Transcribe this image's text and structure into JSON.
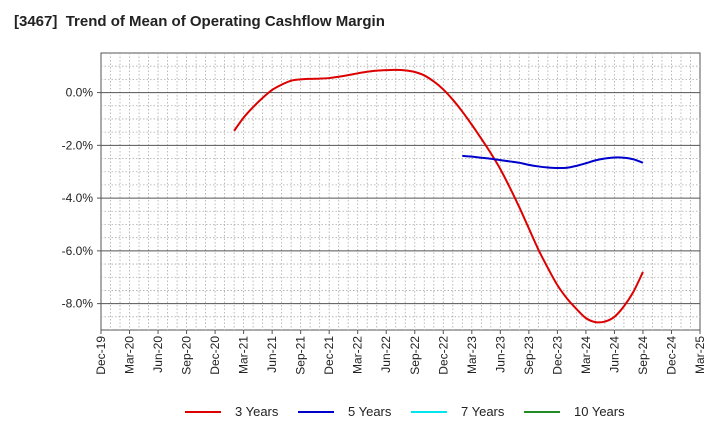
{
  "chart_data": {
    "type": "line",
    "title": "[3467]  Trend of Mean of Operating Cashflow Margin",
    "xlabel": "",
    "ylabel": "",
    "x_tick_labels": [
      "Dec-19",
      "Mar-20",
      "Jun-20",
      "Sep-20",
      "Dec-20",
      "Mar-21",
      "Jun-21",
      "Sep-21",
      "Dec-21",
      "Mar-22",
      "Jun-22",
      "Sep-22",
      "Dec-22",
      "Mar-23",
      "Jun-23",
      "Sep-23",
      "Dec-23",
      "Mar-24",
      "Jun-24",
      "Sep-24",
      "Dec-24",
      "Mar-25"
    ],
    "y_tick_labels": [
      "0.0%",
      "-2.0%",
      "-4.0%",
      "-6.0%",
      "-8.0%"
    ],
    "y_ticks": [
      0,
      -2,
      -4,
      -6,
      -8
    ],
    "ylim": [
      -9.0,
      1.5
    ],
    "x_range": [
      "Dec-19",
      "Mar-25"
    ],
    "grid": true,
    "legend_position": "bottom",
    "series": [
      {
        "name": "3 Years",
        "color": "#dd0000",
        "x": [
          "Feb-21",
          "Mar-21",
          "Apr-21",
          "May-21",
          "Jun-21",
          "Jul-21",
          "Aug-21",
          "Sep-21",
          "Oct-21",
          "Nov-21",
          "Dec-21",
          "Jan-22",
          "Feb-22",
          "Mar-22",
          "Apr-22",
          "May-22",
          "Jun-22",
          "Jul-22",
          "Aug-22",
          "Sep-22",
          "Oct-22",
          "Nov-22",
          "Dec-22",
          "Jan-23",
          "Feb-23",
          "Mar-23",
          "Apr-23",
          "May-23",
          "Jun-23",
          "Jul-23",
          "Aug-23",
          "Sep-23",
          "Oct-23",
          "Nov-23",
          "Dec-23",
          "Jan-24",
          "Feb-24",
          "Mar-24",
          "Apr-24",
          "May-24",
          "Jun-24",
          "Jul-24",
          "Aug-24",
          "Sep-24"
        ],
        "values": [
          -1.45,
          -0.95,
          -0.55,
          -0.2,
          0.1,
          0.3,
          0.45,
          0.5,
          0.52,
          0.53,
          0.55,
          0.6,
          0.66,
          0.73,
          0.79,
          0.83,
          0.85,
          0.86,
          0.84,
          0.78,
          0.65,
          0.42,
          0.12,
          -0.27,
          -0.72,
          -1.22,
          -1.75,
          -2.3,
          -2.9,
          -3.6,
          -4.35,
          -5.15,
          -5.95,
          -6.65,
          -7.3,
          -7.8,
          -8.2,
          -8.55,
          -8.7,
          -8.68,
          -8.5,
          -8.1,
          -7.55,
          -6.8
        ]
      },
      {
        "name": "5 Years",
        "color": "#0000cc",
        "x": [
          "Feb-23",
          "Mar-23",
          "Apr-23",
          "May-23",
          "Jun-23",
          "Jul-23",
          "Aug-23",
          "Sep-23",
          "Oct-23",
          "Nov-23",
          "Dec-23",
          "Jan-24",
          "Feb-24",
          "Mar-24",
          "Apr-24",
          "May-24",
          "Jun-24",
          "Jul-24",
          "Aug-24",
          "Sep-24"
        ],
        "values": [
          -2.4,
          -2.43,
          -2.47,
          -2.51,
          -2.56,
          -2.61,
          -2.66,
          -2.74,
          -2.8,
          -2.84,
          -2.86,
          -2.85,
          -2.78,
          -2.68,
          -2.57,
          -2.5,
          -2.46,
          -2.47,
          -2.53,
          -2.66
        ]
      },
      {
        "name": "7 Years",
        "color": "#00e5ee",
        "x": [],
        "values": []
      },
      {
        "name": "10 Years",
        "color": "#228b22",
        "x": [],
        "values": []
      }
    ]
  }
}
